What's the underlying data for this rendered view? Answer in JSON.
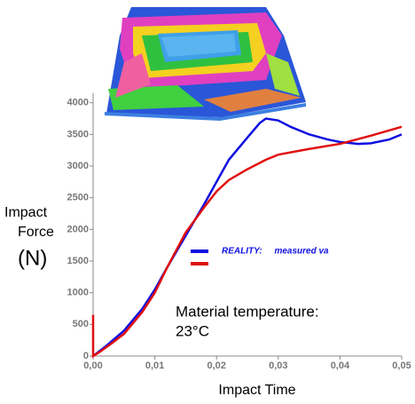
{
  "chart_data": {
    "type": "line",
    "y_label_lines": [
      "Impact",
      "Force",
      "(N)"
    ],
    "x_label": "Impact Time",
    "annotation_lines": [
      "Material temperature:",
      "23°C"
    ],
    "xlim": [
      0,
      0.05
    ],
    "xticks": [
      {
        "value": 0,
        "label": "0,00"
      },
      {
        "value": 0.01,
        "label": "0,01"
      },
      {
        "value": 0.02,
        "label": "0,02"
      },
      {
        "value": 0.03,
        "label": "0,03"
      },
      {
        "value": 0.04,
        "label": "0,04"
      },
      {
        "value": 0.05,
        "label": "0,05"
      }
    ],
    "ylim": [
      0,
      4150
    ],
    "yticks": [
      0,
      500,
      1000,
      1500,
      2000,
      2500,
      3000,
      3500,
      4000
    ],
    "series": [
      {
        "name": "REALITY:     measured va",
        "color": "#1010e0",
        "x": [
          0,
          0.002,
          0.005,
          0.008,
          0.01,
          0.012,
          0.015,
          0.018,
          0.02,
          0.022,
          0.025,
          0.027,
          0.028,
          0.03,
          0.032,
          0.035,
          0.038,
          0.04,
          0.043,
          0.045,
          0.048,
          0.05
        ],
        "values": [
          0,
          150,
          400,
          750,
          1050,
          1400,
          1900,
          2400,
          2750,
          3100,
          3450,
          3680,
          3750,
          3720,
          3620,
          3500,
          3420,
          3380,
          3350,
          3360,
          3420,
          3500
        ]
      },
      {
        "color": "#e01010",
        "x": [
          0,
          0,
          0.001,
          0.003,
          0.005,
          0.008,
          0.01,
          0.012,
          0.015,
          0.018,
          0.02,
          0.022,
          0.025,
          0.028,
          0.03,
          0.035,
          0.04,
          0.045,
          0.05
        ],
        "values": [
          650,
          0,
          60,
          200,
          350,
          700,
          1000,
          1400,
          1950,
          2350,
          2600,
          2780,
          2950,
          3100,
          3180,
          3270,
          3350,
          3480,
          3620
        ]
      }
    ]
  }
}
